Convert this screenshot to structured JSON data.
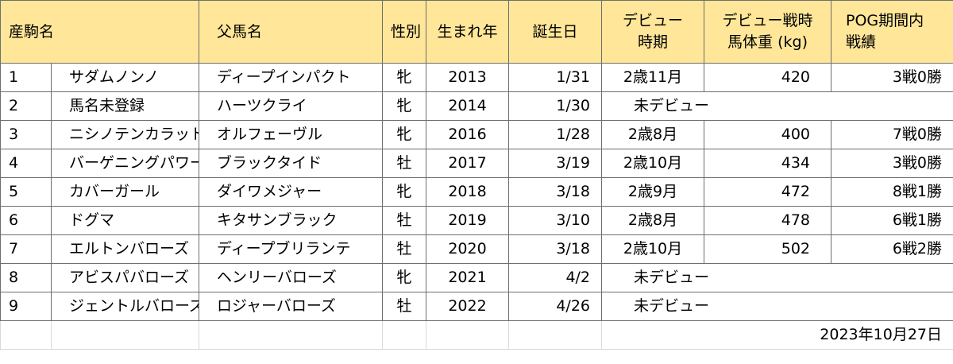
{
  "headers": {
    "h_name": "産駒名",
    "h_sire": "父馬名",
    "h_sex": "性別",
    "h_year": "生まれ年",
    "h_bday": "誕生日",
    "h_debut_l1": "デビュー",
    "h_debut_l2": "時期",
    "h_weight_l1": "デビュー戦時",
    "h_weight_l2": "馬体重 (kg)",
    "h_record_l1": "POG期間内",
    "h_record_l2": "戦績"
  },
  "rows": [
    {
      "no": "1",
      "name": "サダムノンノ",
      "sire": "ディープインパクト",
      "sex": "牝",
      "year": "2013",
      "bday": "1/31",
      "debut": "2歳11月",
      "weight": "420",
      "record": "3戦0勝"
    },
    {
      "no": "2",
      "name": "馬名未登録",
      "sire": "ハーツクライ",
      "sex": "牝",
      "year": "2014",
      "bday": "1/30",
      "debut": "未デビュー",
      "weight": "",
      "record": ""
    },
    {
      "no": "3",
      "name": "ニシノテンカラット",
      "sire": "オルフェーヴル",
      "sex": "牝",
      "year": "2016",
      "bday": "1/28",
      "debut": "2歳8月",
      "weight": "400",
      "record": "7戦0勝"
    },
    {
      "no": "4",
      "name": "バーゲニングパワー",
      "sire": "ブラックタイド",
      "sex": "牡",
      "year": "2017",
      "bday": "3/19",
      "debut": "2歳10月",
      "weight": "434",
      "record": "3戦0勝"
    },
    {
      "no": "5",
      "name": "カバーガール",
      "sire": "ダイワメジャー",
      "sex": "牝",
      "year": "2018",
      "bday": "3/18",
      "debut": "2歳9月",
      "weight": "472",
      "record": "8戦1勝"
    },
    {
      "no": "6",
      "name": "ドグマ",
      "sire": "キタサンブラック",
      "sex": "牡",
      "year": "2019",
      "bday": "3/10",
      "debut": "2歳8月",
      "weight": "478",
      "record": "6戦1勝"
    },
    {
      "no": "7",
      "name": "エルトンバローズ",
      "sire": "ディープブリランテ",
      "sex": "牡",
      "year": "2020",
      "bday": "3/18",
      "debut": "2歳10月",
      "weight": "502",
      "record": "6戦2勝"
    },
    {
      "no": "8",
      "name": "アビスパバローズ",
      "sire": "ヘンリーバローズ",
      "sex": "牝",
      "year": "2021",
      "bday": "4/2",
      "debut": "未デビュー",
      "weight": "",
      "record": ""
    },
    {
      "no": "9",
      "name": "ジェントルバローズ",
      "sire": "ロジャーバローズ",
      "sex": "牡",
      "year": "2022",
      "bday": "4/26",
      "debut": "未デビュー",
      "weight": "",
      "record": ""
    }
  ],
  "footer_date": "2023年10月27日"
}
